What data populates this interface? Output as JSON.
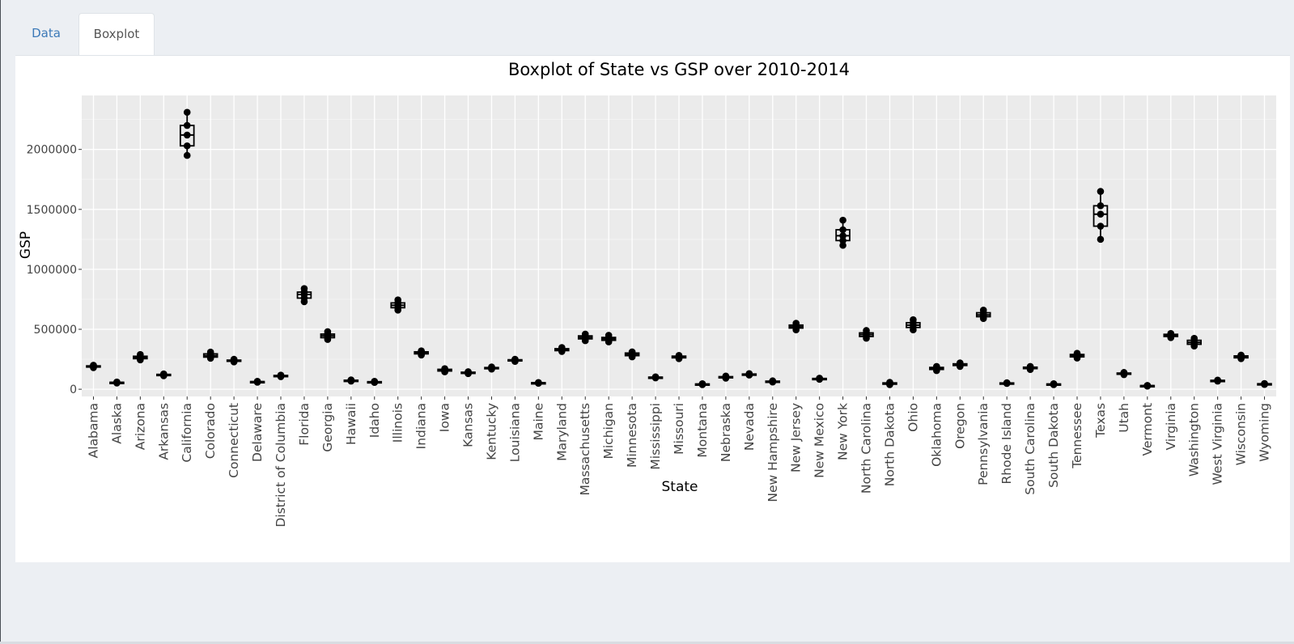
{
  "tabs": [
    {
      "label": "Data",
      "active": false
    },
    {
      "label": "Boxplot",
      "active": true
    }
  ],
  "colors": {
    "tab_link": "#3d7ab8",
    "panel_bg": "#ebebeb",
    "grid": "#ffffff",
    "marks": "#000000"
  },
  "chart_data": {
    "type": "boxplot",
    "title": "Boxplot of State vs GSP over 2010-2014",
    "xlabel": "State",
    "ylabel": "GSP",
    "ylim": [
      -60000,
      2450000
    ],
    "yticks": [
      0,
      500000,
      1000000,
      1500000,
      2000000
    ],
    "ytick_labels": [
      "0",
      "500000",
      "1000000",
      "1500000",
      "2000000"
    ],
    "grid": true,
    "legend": "none",
    "categories": [
      "Alabama",
      "Alaska",
      "Arizona",
      "Arkansas",
      "California",
      "Colorado",
      "Connecticut",
      "Delaware",
      "District of Columbia",
      "Florida",
      "Georgia",
      "Hawaii",
      "Idaho",
      "Illinois",
      "Indiana",
      "Iowa",
      "Kansas",
      "Kentucky",
      "Louisiana",
      "Maine",
      "Maryland",
      "Massachusetts",
      "Michigan",
      "Minnesota",
      "Mississippi",
      "Missouri",
      "Montana",
      "Nebraska",
      "Nevada",
      "New Hampshire",
      "New Jersey",
      "New Mexico",
      "New York",
      "North Carolina",
      "North Dakota",
      "Ohio",
      "Oklahoma",
      "Oregon",
      "Pennsylvania",
      "Rhode Island",
      "South Carolina",
      "South Dakota",
      "Tennessee",
      "Texas",
      "Utah",
      "Vermont",
      "Virginia",
      "Washington",
      "West Virginia",
      "Wisconsin",
      "Wyoming"
    ],
    "values": [
      [
        180000,
        185000,
        190000,
        195000,
        200000
      ],
      [
        52000,
        54000,
        56000,
        58000,
        60000
      ],
      [
        245000,
        255000,
        265000,
        275000,
        290000
      ],
      [
        112000,
        116000,
        120000,
        124000,
        128000
      ],
      [
        1950000,
        2030000,
        2120000,
        2200000,
        2310000
      ],
      [
        258000,
        268000,
        280000,
        295000,
        310000
      ],
      [
        228000,
        233000,
        238000,
        243000,
        250000
      ],
      [
        58000,
        60000,
        62000,
        64000,
        66000
      ],
      [
        105000,
        108000,
        112000,
        115000,
        118000
      ],
      [
        730000,
        760000,
        790000,
        810000,
        840000
      ],
      [
        415000,
        430000,
        445000,
        460000,
        480000
      ],
      [
        68000,
        70000,
        72000,
        75000,
        78000
      ],
      [
        57000,
        59000,
        61000,
        63000,
        66000
      ],
      [
        660000,
        680000,
        700000,
        720000,
        745000
      ],
      [
        285000,
        295000,
        305000,
        312000,
        320000
      ],
      [
        145000,
        152000,
        160000,
        166000,
        172000
      ],
      [
        130000,
        134000,
        138000,
        142000,
        146000
      ],
      [
        168000,
        172000,
        177000,
        181000,
        186000
      ],
      [
        232000,
        237000,
        242000,
        246000,
        250000
      ],
      [
        50000,
        51500,
        53000,
        54500,
        56000
      ],
      [
        315000,
        322000,
        330000,
        338000,
        348000
      ],
      [
        405000,
        420000,
        432000,
        445000,
        460000
      ],
      [
        395000,
        408000,
        420000,
        432000,
        450000
      ],
      [
        270000,
        280000,
        292000,
        302000,
        312000
      ],
      [
        95000,
        97000,
        99000,
        101000,
        103000
      ],
      [
        255000,
        262000,
        270000,
        276000,
        282000
      ],
      [
        38000,
        40000,
        42000,
        44000,
        46000
      ],
      [
        92000,
        96000,
        101000,
        105000,
        110000
      ],
      [
        118000,
        121000,
        124000,
        127000,
        130000
      ],
      [
        60000,
        62500,
        65000,
        67500,
        70000
      ],
      [
        495000,
        510000,
        522000,
        535000,
        550000
      ],
      [
        83000,
        85000,
        88000,
        90000,
        92000
      ],
      [
        1200000,
        1240000,
        1280000,
        1330000,
        1410000
      ],
      [
        425000,
        440000,
        455000,
        470000,
        490000
      ],
      [
        38000,
        42000,
        48000,
        53000,
        58000
      ],
      [
        495000,
        515000,
        535000,
        555000,
        580000
      ],
      [
        155000,
        165000,
        173000,
        182000,
        190000
      ],
      [
        190000,
        198000,
        205000,
        212000,
        220000
      ],
      [
        590000,
        605000,
        620000,
        638000,
        660000
      ],
      [
        48000,
        49500,
        51000,
        52500,
        54000
      ],
      [
        165000,
        172000,
        178000,
        184000,
        190000
      ],
      [
        38000,
        40000,
        42000,
        44000,
        46000
      ],
      [
        260000,
        270000,
        280000,
        290000,
        300000
      ],
      [
        1250000,
        1360000,
        1460000,
        1530000,
        1650000
      ],
      [
        122000,
        126000,
        130000,
        135000,
        140000
      ],
      [
        26000,
        27500,
        29000,
        30500,
        32000
      ],
      [
        430000,
        440000,
        450000,
        458000,
        465000
      ],
      [
        360000,
        375000,
        390000,
        408000,
        425000
      ],
      [
        68000,
        70000,
        72000,
        74000,
        76000
      ],
      [
        255000,
        262000,
        270000,
        278000,
        285000
      ],
      [
        40000,
        42000,
        44000,
        46000,
        48000
      ]
    ]
  }
}
